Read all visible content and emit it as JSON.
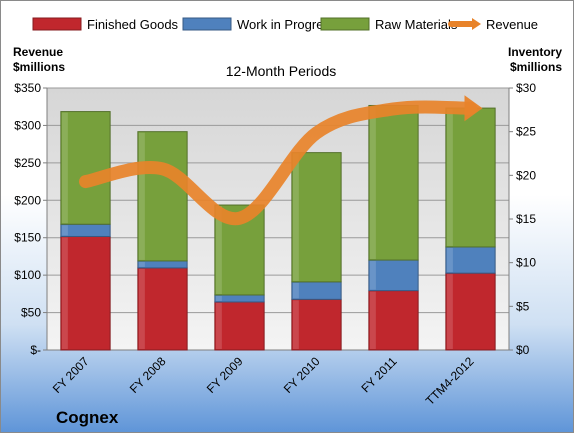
{
  "company": "Cognex",
  "chart_data": {
    "type": "bar",
    "stacked": true,
    "subtitle": "12-Month Periods",
    "categories": [
      "FY 2007",
      "FY 2008",
      "FY 2009",
      "FY 2010",
      "FY 2011",
      "TTM4-2012"
    ],
    "y_left": {
      "title": [
        "Revenue",
        "$millions"
      ],
      "range": [
        0,
        350
      ],
      "ticks": [
        "$-",
        "$50",
        "$100",
        "$150",
        "$200",
        "$250",
        "$300",
        "$350"
      ]
    },
    "y_right": {
      "title": [
        "Inventory",
        "$millions"
      ],
      "range": [
        0,
        30
      ],
      "ticks": [
        "$0",
        "$5",
        "$10",
        "$15",
        "$20",
        "$25",
        "$30"
      ]
    },
    "series": [
      {
        "name": "Finished Goods",
        "axis": "right",
        "color": "#c0272d",
        "values": [
          13.0,
          9.4,
          5.5,
          5.8,
          6.8,
          8.8
        ]
      },
      {
        "name": "Work in Progress",
        "axis": "right",
        "color": "#4f81bd",
        "values": [
          1.4,
          0.8,
          0.8,
          2.0,
          3.5,
          3.0
        ]
      },
      {
        "name": "Raw Materials",
        "axis": "right",
        "color": "#77a03c",
        "values": [
          12.9,
          14.8,
          10.3,
          14.8,
          17.7,
          15.9
        ]
      },
      {
        "name": "Revenue",
        "axis": "left",
        "type": "line",
        "color": "#e8832a",
        "values": [
          225,
          242,
          176,
          290,
          322,
          323
        ]
      }
    ],
    "legend_position": "top",
    "grid": true
  }
}
